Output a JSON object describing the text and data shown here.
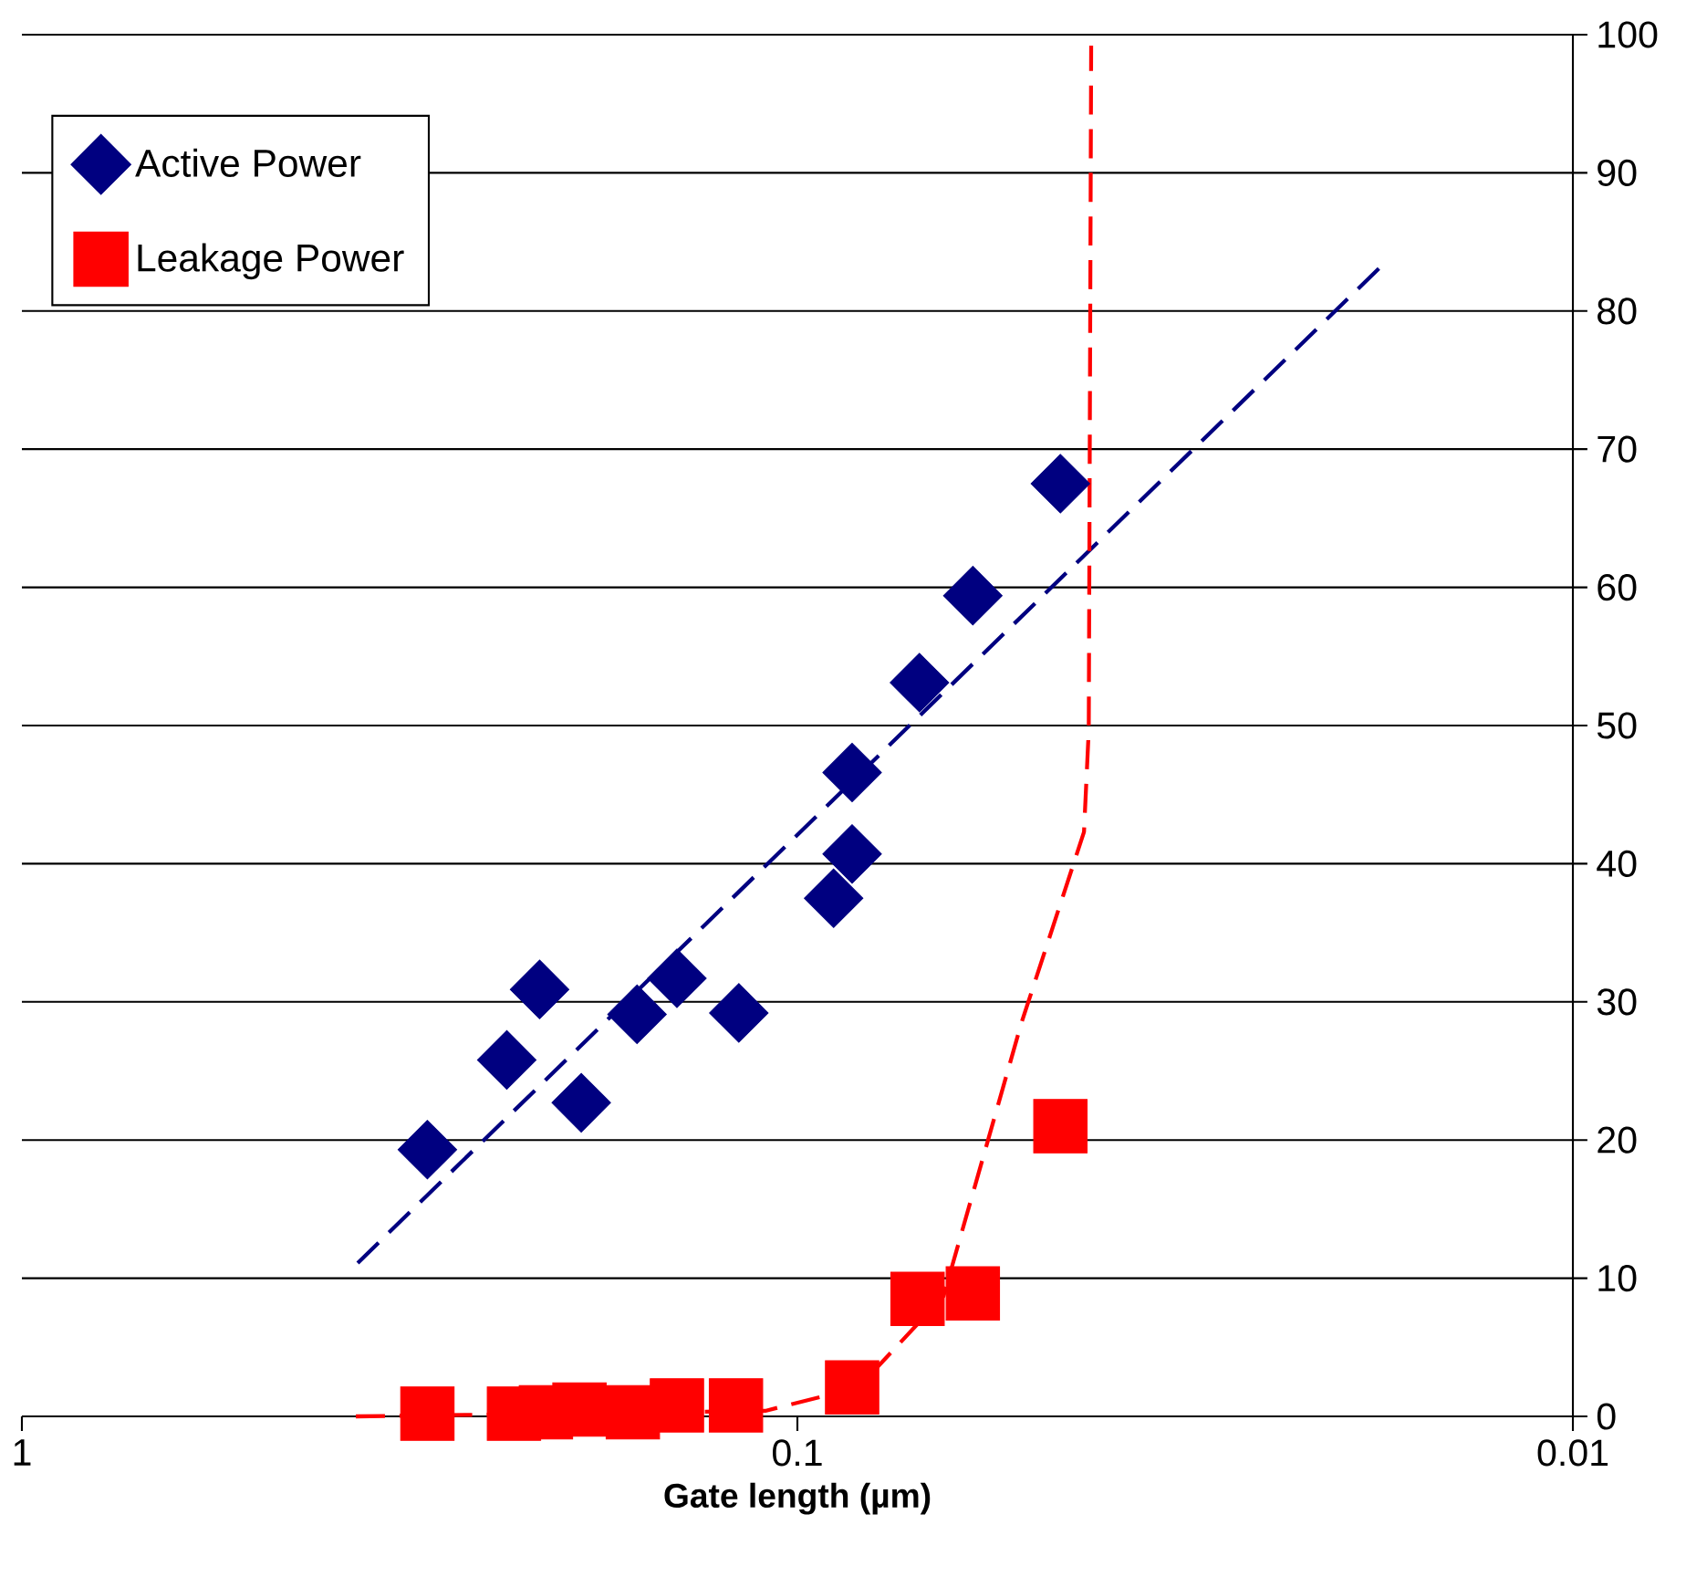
{
  "chart_data": {
    "type": "scatter",
    "xlabel": "Gate length (µm)",
    "log": "x",
    "grid": "y",
    "legend": "top left",
    "xlim": [
      1,
      0.01
    ],
    "xticks": [
      1,
      0.1,
      0.01
    ],
    "ylim": [
      0,
      100
    ],
    "yticks": [
      0,
      10,
      20,
      30,
      40,
      50,
      60,
      70,
      80,
      90,
      100
    ],
    "series": [
      {
        "name": "Active Power",
        "color": "#000080",
        "marker": "diamond",
        "x": [
          0.3,
          0.237,
          0.215,
          0.19,
          0.161,
          0.143,
          0.119,
          0.0898,
          0.085,
          0.085,
          0.0696,
          0.0594,
          0.0458
        ],
        "values": [
          19.3,
          25.8,
          30.9,
          22.7,
          29.1,
          31.7,
          29.2,
          37.5,
          40.7,
          46.6,
          53.1,
          59.4,
          67.5
        ]
      },
      {
        "name": "Leakage Power",
        "color": "#ff0000",
        "marker": "square",
        "x": [
          0.3,
          0.232,
          0.211,
          0.191,
          0.163,
          0.143,
          0.12,
          0.085,
          0.07,
          0.0594,
          0.0458
        ],
        "values": [
          0.2,
          0.2,
          0.3,
          0.5,
          0.3,
          0.8,
          0.8,
          2.1,
          8.5,
          8.9,
          21.0
        ]
      },
      {
        "type": "line",
        "color": "#000080",
        "line_style": "dashed",
        "marker": "none",
        "x": [
          0.369,
          0.0177
        ],
        "values": [
          11.1,
          83.2
        ]
      },
      {
        "type": "line",
        "color": "#ff0000",
        "line_style": "dashed",
        "marker": "none",
        "x": [
          0.371,
          0.11,
          0.0834,
          0.0648,
          0.0514,
          0.0427,
          0.0421,
          0.0418
        ],
        "values": [
          0,
          0.4,
          2.1,
          8.7,
          28.5,
          42.3,
          49.7,
          99.2
        ]
      }
    ]
  }
}
